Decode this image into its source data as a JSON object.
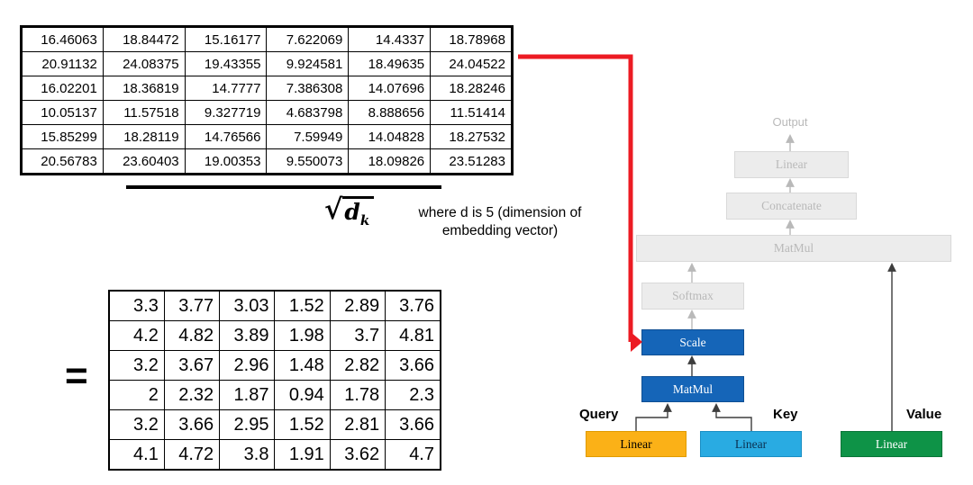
{
  "matrix_scores": {
    "rows": [
      [
        "16.46063",
        "18.84472",
        "15.16177",
        "7.622069",
        "14.4337",
        "18.78968"
      ],
      [
        "20.91132",
        "24.08375",
        "19.43355",
        "9.924581",
        "18.49635",
        "24.04522"
      ],
      [
        "16.02201",
        "18.36819",
        "14.7777",
        "7.386308",
        "14.07696",
        "18.28246"
      ],
      [
        "10.05137",
        "11.57518",
        "9.327719",
        "4.683798",
        "8.888656",
        "11.51414"
      ],
      [
        "15.85299",
        "18.28119",
        "14.76566",
        "7.59949",
        "14.04828",
        "18.27532"
      ],
      [
        "20.56783",
        "23.60403",
        "19.00353",
        "9.550073",
        "18.09826",
        "23.51283"
      ]
    ]
  },
  "formula": {
    "sqrt": "√",
    "variable": "d",
    "subscript": "k",
    "note_line1": "where d is 5 (dimension of",
    "note_line2": "embedding vector)",
    "equals": "="
  },
  "matrix_result": {
    "rows": [
      [
        "3.3",
        "3.77",
        "3.03",
        "1.52",
        "2.89",
        "3.76"
      ],
      [
        "4.2",
        "4.82",
        "3.89",
        "1.98",
        "3.7",
        "4.81"
      ],
      [
        "3.2",
        "3.67",
        "2.96",
        "1.48",
        "2.82",
        "3.66"
      ],
      [
        "2",
        "2.32",
        "1.87",
        "0.94",
        "1.78",
        "2.3"
      ],
      [
        "3.2",
        "3.66",
        "2.95",
        "1.52",
        "2.81",
        "3.66"
      ],
      [
        "4.1",
        "4.72",
        "3.8",
        "1.91",
        "3.62",
        "4.7"
      ]
    ]
  },
  "diagram": {
    "output_label": "Output",
    "linear_top": "Linear",
    "concatenate": "Concatenate",
    "matmul_top": "MatMul",
    "softmax": "Softmax",
    "scale": "Scale",
    "matmul": "MatMul",
    "query_label": "Query",
    "key_label": "Key",
    "value_label": "Value",
    "linear_query": "Linear",
    "linear_key": "Linear",
    "linear_value": "Linear",
    "colors": {
      "highlight_blue": "#1565B8",
      "query_orange": "#FBB117",
      "key_blue": "#29ABE2",
      "value_green": "#0E9347",
      "inactive_gray": "#ECECEC",
      "arrow_red": "#EC1B23"
    }
  }
}
